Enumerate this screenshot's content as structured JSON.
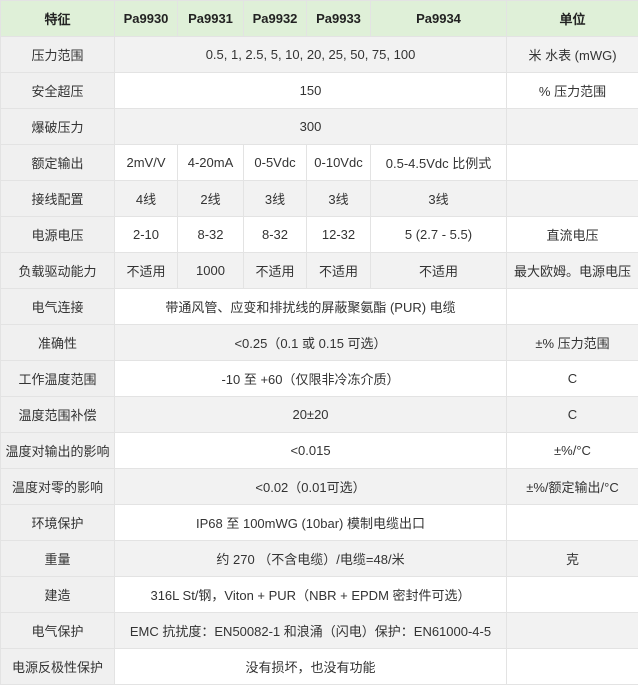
{
  "table": {
    "header": [
      "特征",
      "Pa9930",
      "Pa9931",
      "Pa9932",
      "Pa9933",
      "Pa9934",
      "单位"
    ],
    "rows": [
      {
        "label": "压力范围",
        "values": [
          "0.5, 1, 2.5, 5, 10, 20, 25, 50, 75, 100"
        ],
        "unit": "米 水表 (mWG)"
      },
      {
        "label": "安全超压",
        "values": [
          "150"
        ],
        "unit": "% 压力范围"
      },
      {
        "label": "爆破压力",
        "values": [
          "300"
        ]
      },
      {
        "label": "额定输出",
        "values": [
          "2mV/V",
          "4-20mA",
          "0-5Vdc",
          "0-10Vdc",
          "0.5-4.5Vdc 比例式"
        ]
      },
      {
        "label": "接线配置",
        "values": [
          "4线",
          "2线",
          "3线",
          "3线",
          "3线"
        ]
      },
      {
        "label": "电源电压",
        "values": [
          "2-10",
          "8-32",
          "8-32",
          "12-32",
          "5 (2.7 - 5.5)"
        ],
        "unit": "直流电压"
      },
      {
        "label": "负载驱动能力",
        "values": [
          "不适用",
          "1000",
          "不适用",
          "不适用",
          "不适用"
        ],
        "unit": "最大欧姆。电源电压"
      },
      {
        "label": "电气连接",
        "values": [
          "带通风管、应变和排扰线的屏蔽聚氨酯 (PUR) 电缆"
        ]
      },
      {
        "label": "准确性",
        "values": [
          "<0.25（0.1 或 0.15 可选）"
        ],
        "unit": "±% 压力范围"
      },
      {
        "label": "工作温度范围",
        "values": [
          "-10 至 +60（仅限非冷冻介质）"
        ],
        "unit": "C"
      },
      {
        "label": "温度范围补偿",
        "values": [
          "20±20"
        ],
        "unit": "C"
      },
      {
        "label": "温度对输出的影响",
        "values": [
          "<0.015"
        ],
        "unit": "±%/°C"
      },
      {
        "label": "温度对零的影响",
        "values": [
          "<0.02（0.01可选）"
        ],
        "unit": "±%/额定输出/°C"
      },
      {
        "label": "环境保护",
        "values": [
          "IP68 至 100mWG (10bar) 模制电缆出口"
        ]
      },
      {
        "label": "重量",
        "values": [
          "约 270 （不含电缆）/电缆=48/米"
        ],
        "unit": "克"
      },
      {
        "label": "建造",
        "values": [
          "316L St/钢，Viton + PUR（NBR + EPDM 密封件可选）"
        ]
      },
      {
        "label": "电气保护",
        "values": [
          "EMC 抗扰度：EN50082-1 和浪涌（闪电）保护：EN61000-4-5"
        ]
      },
      {
        "label": "电源反极性保护",
        "values": [
          "没有损坏，也没有功能"
        ]
      }
    ]
  }
}
